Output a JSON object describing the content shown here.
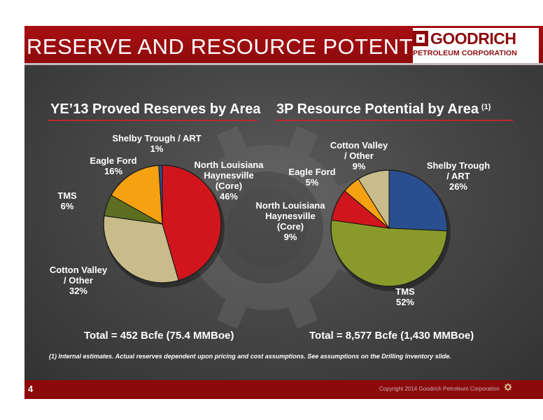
{
  "header": {
    "title": "RESERVE AND RESOURCE POTENTIAL",
    "logo_name": "GOODRICH",
    "logo_sub": "PETROLEUM CORPORATION"
  },
  "colors": {
    "brand_red": "#8c0a0c",
    "slice_red": "#d0161c",
    "slice_tan": "#c8bc8a",
    "slice_green": "#5d6e22",
    "slice_orange": "#f5a112",
    "slice_blue": "#2a4f8f",
    "slice_olive": "#8a9a2a"
  },
  "chart_data": [
    {
      "type": "pie",
      "title": "YE’13 Proved Reserves by Area",
      "total_label": "Total = 452 Bcfe (75.4 MMBoe)",
      "slices": [
        {
          "name": "North Louisiana Haynesville (Core)",
          "label_lines": [
            "North Louisiana",
            "Haynesville",
            "(Core)",
            "46%"
          ],
          "value": 46,
          "color": "#d0161c"
        },
        {
          "name": "Cotton Valley / Other",
          "label_lines": [
            "Cotton Valley",
            "/ Other",
            "32%"
          ],
          "value": 32,
          "color": "#c8bc8a"
        },
        {
          "name": "TMS",
          "label_lines": [
            "TMS",
            "6%"
          ],
          "value": 6,
          "color": "#5d6e22"
        },
        {
          "name": "Eagle Ford",
          "label_lines": [
            "Eagle Ford",
            "16%"
          ],
          "value": 16,
          "color": "#f5a112"
        },
        {
          "name": "Shelby Trough / ART",
          "label_lines": [
            "Shelby Trough / ART",
            "1%"
          ],
          "value": 1,
          "color": "#2a4f8f"
        }
      ]
    },
    {
      "type": "pie",
      "title": "3P Resource Potential by Area",
      "title_note": "(1)",
      "total_label": "Total = 8,577 Bcfe (1,430 MMBoe)",
      "slices": [
        {
          "name": "Shelby Trough / ART",
          "label_lines": [
            "Shelby Trough",
            "/ ART",
            "26%"
          ],
          "value": 26,
          "color": "#2a4f8f"
        },
        {
          "name": "TMS",
          "label_lines": [
            "TMS",
            "52%"
          ],
          "value": 52,
          "color": "#8a9a2a"
        },
        {
          "name": "North Louisiana Haynesville (Core)",
          "label_lines": [
            "North Louisiana",
            "Haynesville",
            "(Core)",
            "9%"
          ],
          "value": 9,
          "color": "#d0161c"
        },
        {
          "name": "Eagle Ford",
          "label_lines": [
            "Eagle Ford",
            "5%"
          ],
          "value": 5,
          "color": "#f5a112"
        },
        {
          "name": "Cotton Valley / Other",
          "label_lines": [
            "Cotton Valley",
            "/ Other",
            "9%"
          ],
          "value": 9,
          "color": "#c8bc8a"
        }
      ]
    }
  ],
  "footnote": "(1) Internal estimates.  Actual reserves dependent upon pricing and cost assumptions. See assumptions on the Drilling Inventory slide.",
  "footer": {
    "page_number": "4",
    "copyright": "Copyright 2014 Goodrich Petroleum Corporation"
  }
}
